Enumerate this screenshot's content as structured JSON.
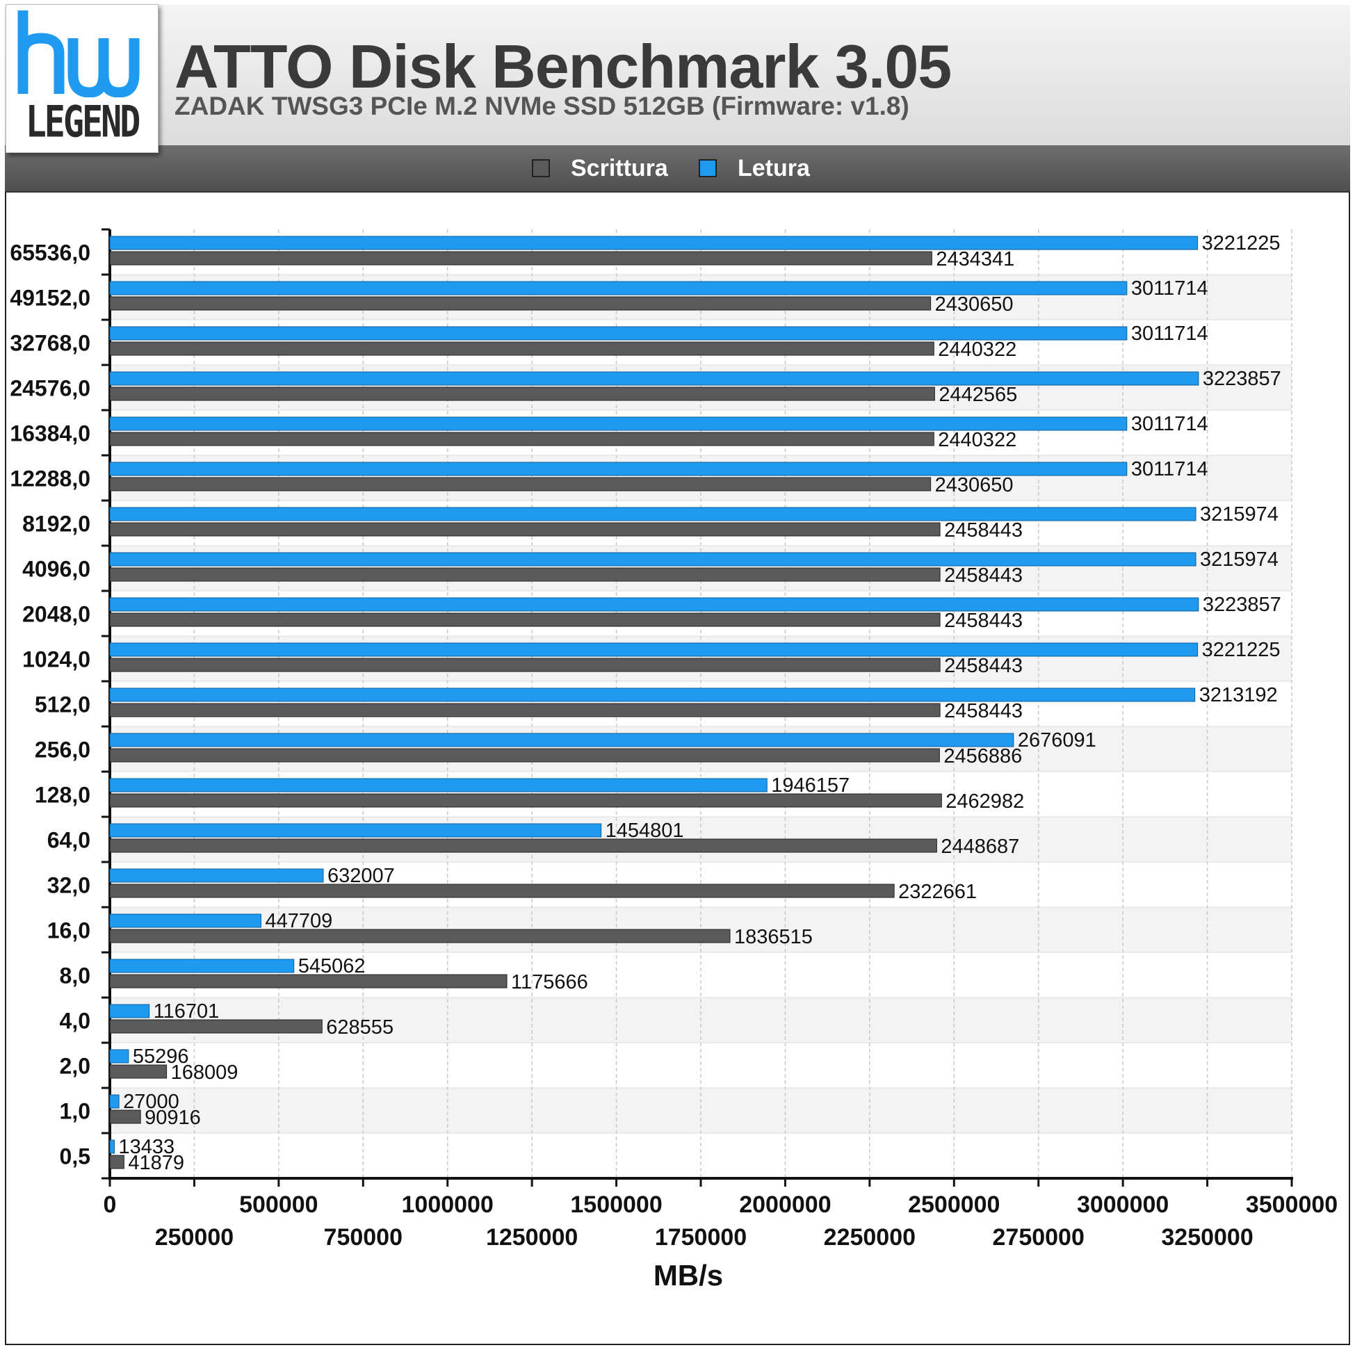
{
  "header": {
    "logo_top": "hw",
    "logo_bottom": "LEGEND",
    "title": "ATTO Disk Benchmark 3.05",
    "subtitle": "ZADAK TWSG3 PCIe M.2 NVMe SSD 512GB (Firmware: v1.8)"
  },
  "legend": [
    {
      "label": "Scrittura",
      "color": "#5a5a5a"
    },
    {
      "label": "Letura",
      "color": "#1e9bf0"
    }
  ],
  "chart_data": {
    "type": "bar",
    "orientation": "horizontal",
    "categories": [
      "65536,0",
      "49152,0",
      "32768,0",
      "24576,0",
      "16384,0",
      "12288,0",
      "8192,0",
      "4096,0",
      "2048,0",
      "1024,0",
      "512,0",
      "256,0",
      "128,0",
      "64,0",
      "32,0",
      "16,0",
      "8,0",
      "4,0",
      "2,0",
      "1,0",
      "0,5"
    ],
    "series": [
      {
        "name": "Letura",
        "color": "#1e9bf0",
        "values": [
          3221225,
          3011714,
          3011714,
          3223857,
          3011714,
          3011714,
          3215974,
          3215974,
          3223857,
          3221225,
          3213192,
          2676091,
          1946157,
          1454801,
          632007,
          447709,
          545062,
          116701,
          55296,
          27000,
          13433
        ]
      },
      {
        "name": "Scrittura",
        "color": "#5a5a5a",
        "values": [
          2434341,
          2430650,
          2440322,
          2442565,
          2440322,
          2430650,
          2458443,
          2458443,
          2458443,
          2458443,
          2458443,
          2456886,
          2462982,
          2448687,
          2322661,
          1836515,
          1175666,
          628555,
          168009,
          90916,
          41879
        ]
      }
    ],
    "xlim": [
      0,
      3500000
    ],
    "xticks_major": [
      "0",
      "500000",
      "1000000",
      "1500000",
      "2000000",
      "2500000",
      "3000000",
      "3500000"
    ],
    "xticks_minor": [
      "250000",
      "750000",
      "1250000",
      "1750000",
      "2250000",
      "2750000",
      "3250000"
    ],
    "xlabel": "MB/s",
    "ylabel": "",
    "grid": "vertical",
    "legend_position": "top"
  }
}
